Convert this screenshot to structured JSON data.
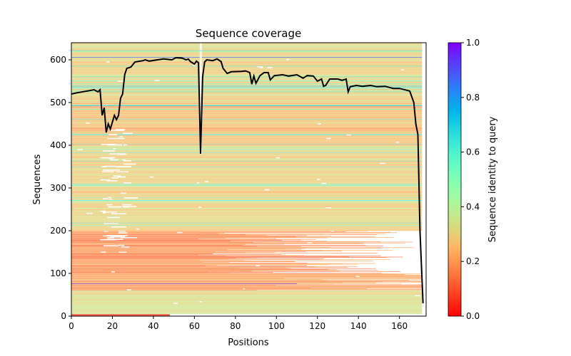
{
  "chart_data": {
    "type": "heatmap",
    "title": "Sequence coverage",
    "xlabel": "Positions",
    "ylabel": "Sequences",
    "xlim": [
      0,
      173
    ],
    "ylim": [
      0,
      640
    ],
    "xticks": [
      "0",
      "20",
      "40",
      "60",
      "80",
      "100",
      "120",
      "140",
      "160"
    ],
    "xtick_values": [
      0,
      20,
      40,
      60,
      80,
      100,
      120,
      140,
      160
    ],
    "yticks": [
      "0",
      "100",
      "200",
      "300",
      "400",
      "500",
      "600"
    ],
    "ytick_values": [
      0,
      100,
      200,
      300,
      400,
      500,
      600
    ],
    "n_sequences": 640,
    "query_length": 172,
    "identity_bands": [
      {
        "from": 0,
        "to": 5,
        "identity": 0.02,
        "end": 48
      },
      {
        "from": 5,
        "to": 60,
        "identity": 0.33,
        "end": 171
      },
      {
        "from": 60,
        "to": 100,
        "identity": 0.2,
        "end": 171
      },
      {
        "from": 100,
        "to": 200,
        "identity": 0.18,
        "end": 150
      },
      {
        "from": 200,
        "to": 400,
        "identity": 0.3,
        "end": 171
      },
      {
        "from": 400,
        "to": 500,
        "identity": 0.26,
        "end": 171
      },
      {
        "from": 500,
        "to": 640,
        "identity": 0.3,
        "end": 171
      }
    ],
    "highlight_rows": [
      {
        "seq": 76,
        "identity": 0.95
      },
      {
        "seq": 395,
        "identity": 0.45
      },
      {
        "seq": 492,
        "identity": 0.75
      },
      {
        "seq": 606,
        "identity": 0.9
      },
      {
        "seq": 620,
        "identity": 0.55
      },
      {
        "seq": 585,
        "identity": 0.6
      },
      {
        "seq": 560,
        "identity": 0.6
      },
      {
        "seq": 525,
        "identity": 0.6
      }
    ],
    "coverage_line": {
      "color": "#000000",
      "x": [
        0,
        3,
        9,
        11,
        13,
        14,
        15,
        16,
        17,
        18,
        19,
        21,
        22,
        23,
        24,
        25,
        26,
        27,
        29,
        31,
        35,
        36,
        38,
        42,
        45,
        49,
        51,
        54,
        56,
        57,
        58,
        60,
        61,
        62,
        63,
        64,
        65,
        66,
        69,
        71,
        73,
        74,
        76,
        78,
        83,
        85,
        87,
        88,
        89,
        90,
        92,
        94,
        96,
        97,
        99,
        103,
        106,
        110,
        113,
        115,
        118,
        120,
        122,
        123,
        124,
        126,
        130,
        132,
        134,
        135,
        136,
        139,
        142,
        146,
        149,
        153,
        157,
        160,
        165,
        167,
        168,
        169,
        170,
        171.5
      ],
      "y": [
        520,
        523,
        528,
        530,
        525,
        530,
        470,
        488,
        430,
        450,
        438,
        470,
        460,
        470,
        510,
        520,
        565,
        580,
        583,
        595,
        598,
        600,
        597,
        600,
        602,
        600,
        605,
        604,
        600,
        602,
        596,
        590,
        597,
        593,
        380,
        560,
        595,
        600,
        598,
        602,
        596,
        580,
        568,
        572,
        573,
        574,
        570,
        543,
        562,
        545,
        563,
        570,
        570,
        553,
        563,
        565,
        562,
        565,
        557,
        563,
        562,
        550,
        555,
        538,
        540,
        555,
        555,
        552,
        555,
        525,
        537,
        540,
        538,
        540,
        537,
        538,
        533,
        533,
        527,
        500,
        450,
        425,
        200,
        30
      ]
    },
    "colorbar": {
      "label": "Sequence identity to query",
      "colormap": "rainbow_r",
      "range": [
        0,
        1
      ],
      "ticks": [
        "0.0",
        "0.2",
        "0.4",
        "0.6",
        "0.8",
        "1.0"
      ],
      "tick_values": [
        0,
        0.2,
        0.4,
        0.6,
        0.8,
        1.0
      ]
    }
  }
}
